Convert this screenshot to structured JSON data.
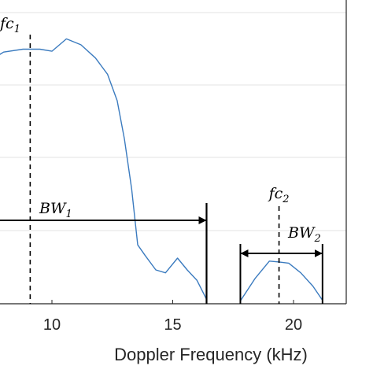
{
  "chart_data": {
    "type": "line",
    "xlabel": "Doppler Frequency (kHz)",
    "x_ticks": [
      10,
      15,
      20
    ],
    "xlim": [
      7.5,
      23.5
    ],
    "ylim": [
      0,
      1
    ],
    "grid": "horizontal",
    "series": [
      {
        "color": "#3b7bbf",
        "segments": [
          {
            "x": [
              7.3,
              8.0,
              8.8,
              9.5,
              10.0,
              10.6,
              11.2,
              11.8,
              12.3,
              12.7,
              13.0,
              13.3,
              13.55,
              13.85,
              14.3,
              14.7,
              15.2,
              15.6,
              16.0,
              16.4
            ],
            "y": [
              0.82,
              0.855,
              0.865,
              0.865,
              0.858,
              0.9,
              0.88,
              0.835,
              0.78,
              0.69,
              0.56,
              0.39,
              0.2,
              0.165,
              0.115,
              0.105,
              0.155,
              0.115,
              0.08,
              0.015
            ]
          },
          {
            "x": [
              17.8,
              18.4,
              19.0,
              19.4,
              19.8,
              20.3,
              20.8,
              21.2
            ],
            "y": [
              0.01,
              0.085,
              0.145,
              0.142,
              0.138,
              0.105,
              0.06,
              0.012
            ]
          }
        ]
      }
    ],
    "annotations": {
      "fc1": {
        "base": "fc",
        "sub": "1",
        "x": 9.1
      },
      "fc2": {
        "base": "fc",
        "sub": "2",
        "x": 19.4
      },
      "bw1": {
        "base": "BW",
        "sub": "1",
        "x_from": 7.3,
        "x_to": 16.4,
        "y": 0.27
      },
      "bw2": {
        "base": "BW",
        "sub": "2",
        "x_from": 17.8,
        "x_to": 21.2,
        "y": 0.17
      }
    }
  }
}
